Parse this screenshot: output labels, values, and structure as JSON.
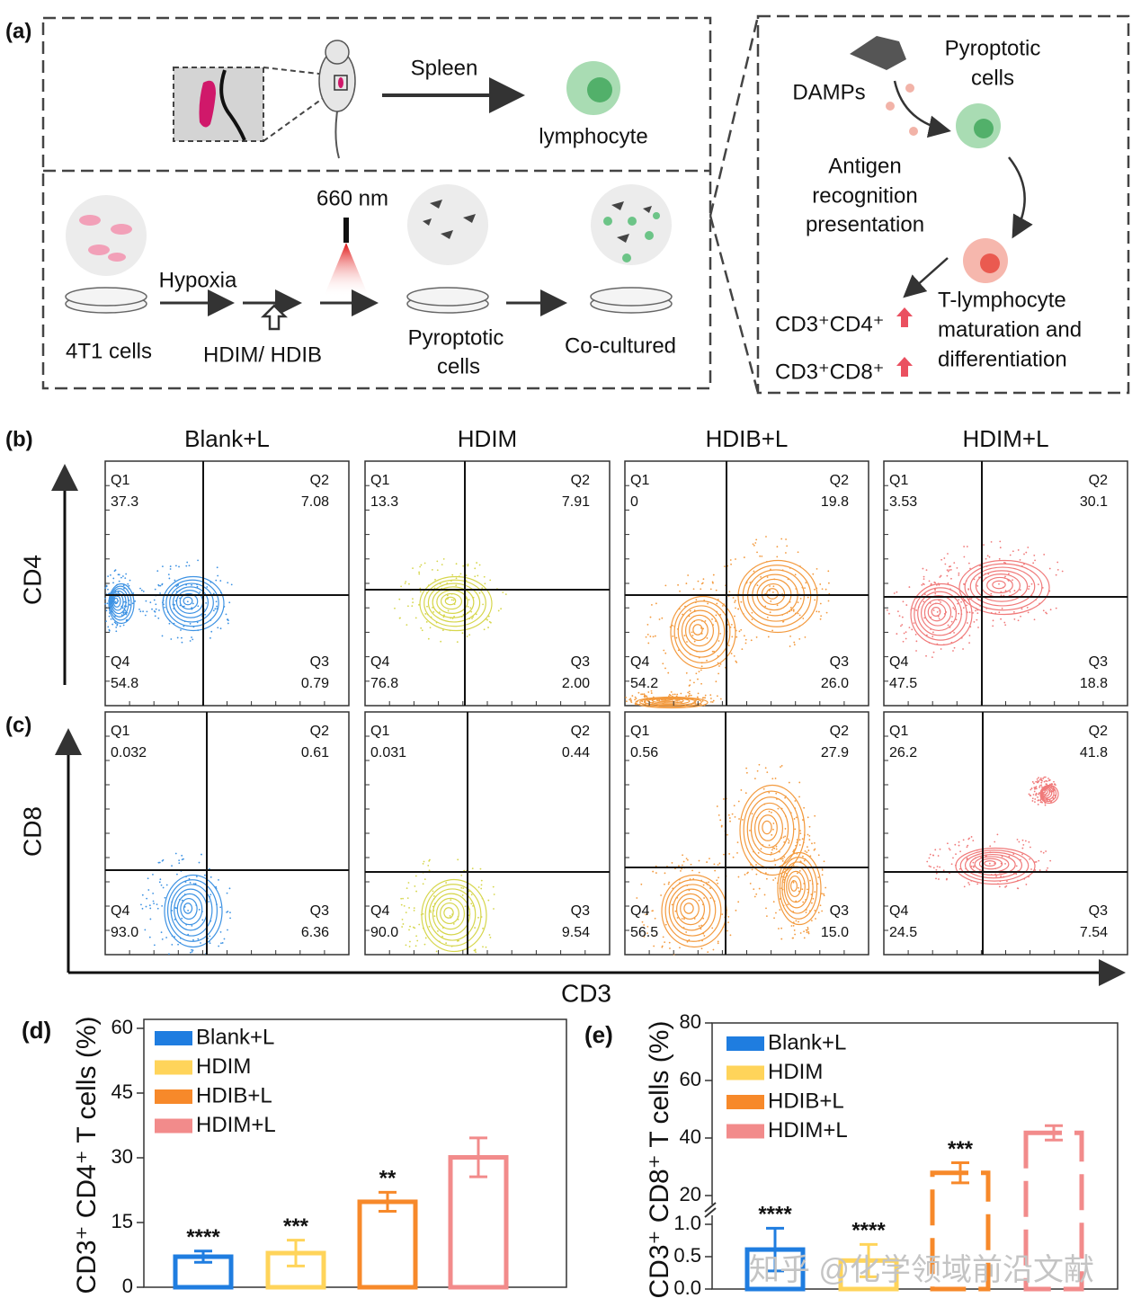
{
  "panel_a": {
    "label": "(a)",
    "spleen": "Spleen",
    "lymphocyte": "lymphocyte",
    "wavelength": "660 nm",
    "hypoxia": "Hypoxia",
    "cells_4t1": "4T1 cells",
    "treatment": "HDIM/ HDIB",
    "pyroptotic": [
      "Pyroptotic",
      "cells"
    ],
    "co_cultured": "Co-cultured",
    "damps": "DAMPs",
    "pyroptotic_right": [
      "Pyroptotic",
      "cells"
    ],
    "antigen": [
      "Antigen",
      "recognition",
      "presentation"
    ],
    "t_lymph": [
      "T-lymphocyte",
      "maturation and",
      "differentiation"
    ],
    "cd4": "CD3⁺CD4⁺",
    "cd8": "CD3⁺CD8⁺"
  },
  "flow": {
    "label_b": "(b)",
    "label_c": "(c)",
    "columns": [
      "Blank+L",
      "HDIM",
      "HDIB+L",
      "HDIM+L"
    ],
    "y_label_b": "CD4",
    "y_label_c": "CD8",
    "x_label": "CD3",
    "quadrant_names": [
      "Q1",
      "Q2",
      "Q3",
      "Q4"
    ],
    "rows": [
      [
        [
          "37.3",
          "7.08",
          "0.79",
          "54.8"
        ],
        [
          "13.3",
          "7.91",
          "2.00",
          "76.8"
        ],
        [
          "0",
          "19.8",
          "26.0",
          "54.2"
        ],
        [
          "3.53",
          "30.1",
          "18.8",
          "47.5"
        ]
      ],
      [
        [
          "0.032",
          "0.61",
          "6.36",
          "93.0"
        ],
        [
          "0.031",
          "0.44",
          "9.54",
          "90.0"
        ],
        [
          "0.56",
          "27.9",
          "15.0",
          "56.5"
        ],
        [
          "26.2",
          "41.8",
          "7.54",
          "24.5"
        ]
      ]
    ]
  },
  "chart_data": [
    {
      "type": "bar",
      "label": "(d)",
      "ylabel": "CD3⁺ CD4⁺ T cells (%)",
      "categories": [
        "Blank+L",
        "HDIM",
        "HDIB+L",
        "HDIM+L"
      ],
      "values": [
        7.08,
        7.91,
        19.8,
        30.1
      ],
      "errors": [
        1.3,
        3.0,
        2.2,
        4.5
      ],
      "colors": [
        "#1f7de0",
        "#ffd45a",
        "#f7892a",
        "#f28b8b"
      ],
      "annotations": [
        "****",
        "***",
        "**",
        null
      ],
      "ylim": [
        0,
        60
      ],
      "yticks": [
        0,
        15,
        30,
        45,
        60
      ],
      "legend": "top-left"
    },
    {
      "type": "bar",
      "label": "(e)",
      "ylabel": "CD3⁺ CD8⁺ T cells (%)",
      "categories": [
        "Blank+L",
        "HDIM",
        "HDIB+L",
        "HDIM+L"
      ],
      "values": [
        0.61,
        0.44,
        27.9,
        41.8
      ],
      "errors": [
        0.33,
        0.25,
        3.5,
        2.5
      ],
      "colors": [
        "#1f7de0",
        "#ffd45a",
        "#f7892a",
        "#f28b8b"
      ],
      "annotations": [
        "****",
        "****",
        "***",
        null
      ],
      "ylim": [
        0,
        80
      ],
      "ylim_segments": [
        [
          0,
          1
        ],
        [
          20,
          80
        ]
      ],
      "yticks": [
        {
          "value": 0,
          "label": "0.0"
        },
        {
          "value": 0.5,
          "label": "0.5"
        },
        {
          "value": 1,
          "label": "1.0"
        },
        20,
        40,
        60,
        80
      ],
      "legend": "top-left"
    }
  ],
  "watermark": "知乎 @化学领域前沿文献"
}
